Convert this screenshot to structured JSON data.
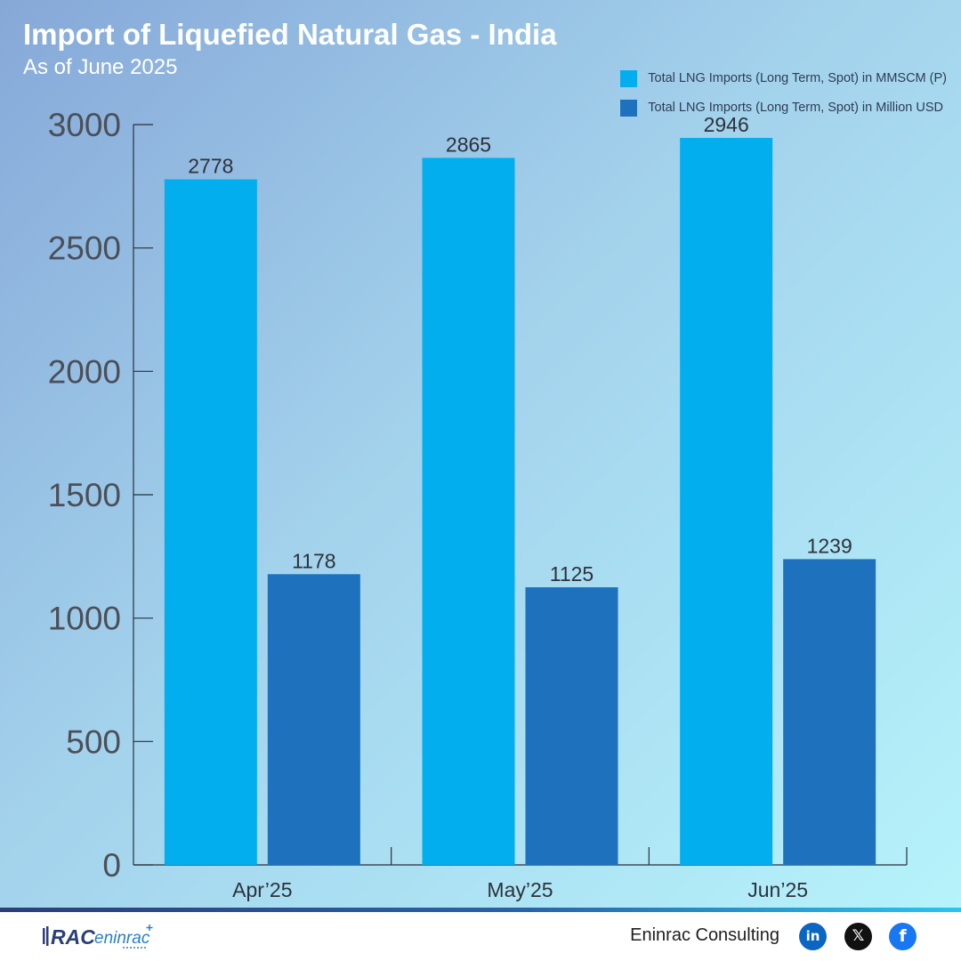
{
  "header": {
    "title": "Import of Liquefied Natural Gas - India",
    "subtitle": "As of June 2025"
  },
  "colors": {
    "series_1": "#03aeef",
    "series_2": "#1e72bd",
    "axis": "#2a2f3d",
    "tick_text": "#4b4f58",
    "label_text": "#2d323b"
  },
  "chart_data": {
    "type": "bar",
    "title": "Import of Liquefied Natural Gas - India",
    "subtitle": "As of June 2025",
    "xlabel": "",
    "ylabel": "",
    "categories": [
      "Apr’25",
      "May’25",
      "Jun’25"
    ],
    "series": [
      {
        "name": "Total LNG Imports (Long Term, Spot) in MMSCM (P)",
        "values": [
          2778,
          2865,
          2946
        ]
      },
      {
        "name": "Total LNG Imports (Long Term, Spot) in Million USD",
        "values": [
          1178,
          1125,
          1239
        ]
      }
    ],
    "ylim": [
      0,
      3000
    ],
    "yticks": [
      0,
      500,
      1000,
      1500,
      2000,
      2500,
      3000
    ],
    "grid": false,
    "legend_position": "top-right",
    "data_labels": true
  },
  "footer": {
    "logo_text_left": "RAC",
    "logo_text_right": "eninrac",
    "brand_name": "Eninrac Consulting",
    "social_icons": [
      "linkedin-icon",
      "x-icon",
      "facebook-icon"
    ],
    "social_glyphs": [
      "in",
      "𝕏",
      "f"
    ],
    "social_colors": [
      "#0a66c2",
      "#111111",
      "#1877f2"
    ]
  }
}
